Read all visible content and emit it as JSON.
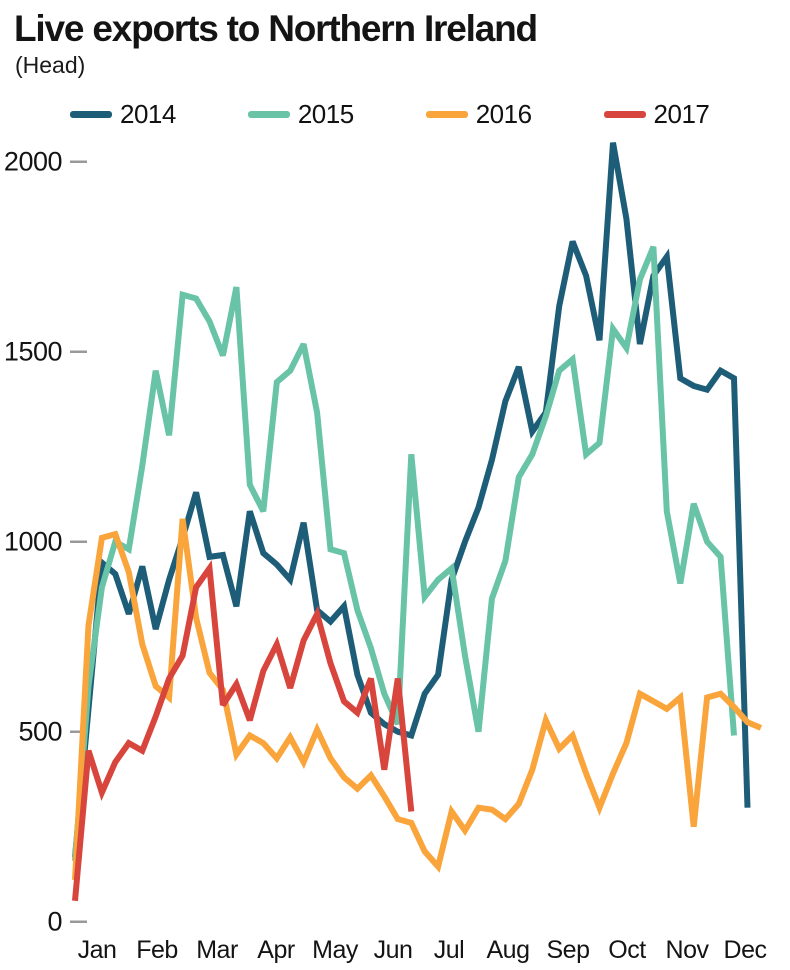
{
  "header": {
    "title": "Live exports to Northern Ireland",
    "subtitle": "(Head)"
  },
  "chart_data": {
    "type": "line",
    "title": "Live exports to Northern Ireland",
    "unit_label": "(Head)",
    "xlabel": "",
    "ylabel": "Head",
    "x_axis": {
      "months": [
        "Jan",
        "Feb",
        "Mar",
        "Apr",
        "May",
        "Jun",
        "Jul",
        "Aug",
        "Sep",
        "Oct",
        "Nov",
        "Dec"
      ],
      "granularity": "weekly",
      "weeks_per_year": 52
    },
    "y_axis": {
      "ticks": [
        0,
        500,
        1000,
        1500,
        2000
      ],
      "min": 0,
      "max": 2053
    },
    "grid": "off",
    "legend_position": "top",
    "axis_tick_color": "#999999",
    "series": [
      {
        "name": "2014",
        "color": "#1d5d78",
        "start_week": 1,
        "values": [
          170,
          560,
          945,
          915,
          810,
          935,
          770,
          900,
          1010,
          1130,
          960,
          965,
          830,
          1080,
          970,
          940,
          900,
          1050,
          820,
          790,
          830,
          650,
          550,
          520,
          500,
          490,
          600,
          650,
          900,
          1000,
          1090,
          1215,
          1370,
          1460,
          1290,
          1340,
          1620,
          1790,
          1700,
          1530,
          2050,
          1850,
          1520,
          1700,
          1750,
          1430,
          1410,
          1400,
          1450,
          1430,
          300
        ]
      },
      {
        "name": "2015",
        "color": "#69c3a6",
        "start_week": 1,
        "values": [
          160,
          620,
          880,
          1000,
          980,
          1200,
          1450,
          1280,
          1650,
          1640,
          1580,
          1490,
          1670,
          1150,
          1080,
          1420,
          1450,
          1520,
          1340,
          980,
          970,
          820,
          720,
          600,
          520,
          1230,
          855,
          900,
          930,
          700,
          500,
          850,
          950,
          1170,
          1230,
          1330,
          1450,
          1480,
          1230,
          1260,
          1560,
          1510,
          1690,
          1776,
          1080,
          890,
          1100,
          1000,
          960,
          490
        ]
      },
      {
        "name": "2016",
        "color": "#faa43c",
        "start_week": 1,
        "values": [
          110,
          780,
          1010,
          1020,
          920,
          730,
          620,
          590,
          1060,
          800,
          655,
          610,
          440,
          490,
          470,
          430,
          485,
          420,
          505,
          430,
          380,
          350,
          385,
          330,
          270,
          260,
          185,
          145,
          290,
          240,
          300,
          295,
          270,
          310,
          400,
          530,
          455,
          490,
          390,
          300,
          390,
          470,
          600,
          580,
          560,
          590,
          250,
          590,
          600,
          565,
          525,
          510
        ]
      },
      {
        "name": "2017",
        "color": "#d8453d",
        "start_week": 1,
        "values": [
          55,
          450,
          340,
          420,
          470,
          450,
          540,
          640,
          700,
          880,
          930,
          570,
          625,
          530,
          660,
          730,
          615,
          740,
          810,
          680,
          580,
          550,
          640,
          400,
          640,
          290
        ]
      }
    ]
  }
}
